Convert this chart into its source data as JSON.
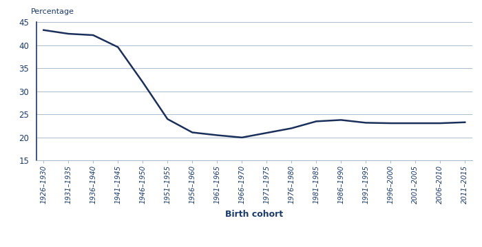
{
  "x_labels": [
    "1926–1930",
    "1931–1935",
    "1936–1940",
    "1941–1945",
    "1946–1950",
    "1951–1955",
    "1956–1960",
    "1961–1965",
    "1966–1970",
    "1971–1975",
    "1976–1980",
    "1981–1985",
    "1986–1990",
    "1991–1995",
    "1996–2000",
    "2001–2005",
    "2006–2010",
    "2011–2015"
  ],
  "y_values": [
    43.3,
    42.5,
    42.2,
    39.6,
    32.0,
    24.0,
    21.1,
    20.5,
    20.0,
    21.0,
    22.0,
    23.5,
    23.8,
    23.2,
    23.1,
    23.1,
    23.1,
    23.3
  ],
  "line_color": "#1a2f5a",
  "line_width": 1.8,
  "ylabel": "Percentage",
  "xlabel": "Birth cohort",
  "ylim": [
    15,
    45
  ],
  "yticks": [
    15,
    20,
    25,
    30,
    35,
    40,
    45
  ],
  "grid_color": "#aabccc",
  "spine_color": "#1a3a6a",
  "tick_label_color": "#1a3a6a",
  "label_color": "#1a3a6a",
  "background_color": "#ffffff"
}
